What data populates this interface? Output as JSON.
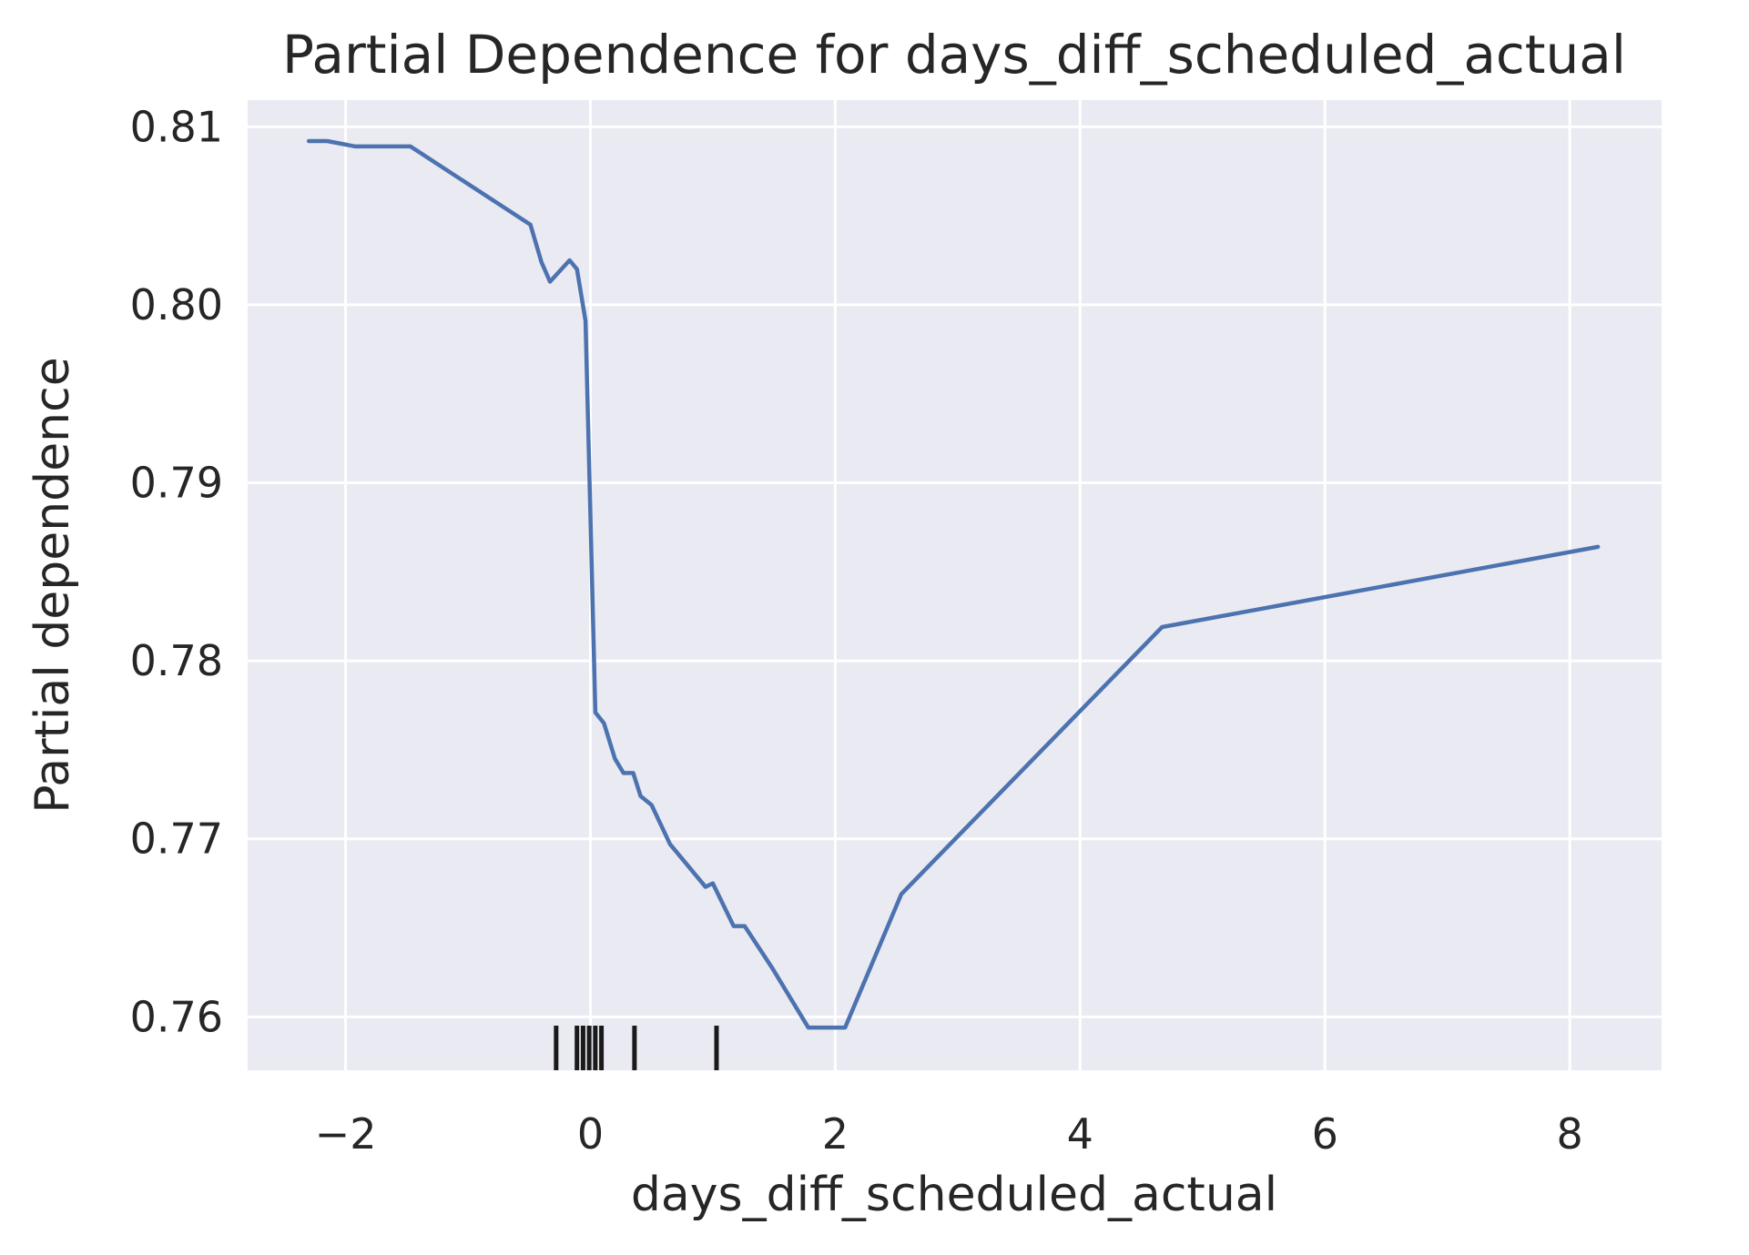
{
  "chart_data": {
    "type": "line",
    "title": "Partial Dependence for days_diff_scheduled_actual",
    "xlabel": "days_diff_scheduled_actual",
    "ylabel": "Partial dependence",
    "xlim": [
      -2.8,
      8.75
    ],
    "ylim": [
      0.757,
      0.8115
    ],
    "x_ticks": [
      -2,
      0,
      2,
      4,
      6,
      8
    ],
    "x_tick_labels": [
      "−2",
      "0",
      "2",
      "4",
      "6",
      "8"
    ],
    "y_ticks": [
      0.76,
      0.77,
      0.78,
      0.79,
      0.8,
      0.81
    ],
    "y_tick_labels": [
      "0.76",
      "0.77",
      "0.78",
      "0.79",
      "0.80",
      "0.81"
    ],
    "grid": true,
    "background": "#EAEAF2",
    "line_color": "#4C72B0",
    "rug_color": "#1a1a1a",
    "series": [
      {
        "x": [
          -2.3,
          -2.15,
          -1.92,
          -1.47,
          -0.49,
          -0.4,
          -0.33,
          -0.17,
          -0.11,
          -0.04,
          0.04,
          0.11,
          0.2,
          0.27,
          0.35,
          0.41,
          0.5,
          0.65,
          0.94,
          1.0,
          1.17,
          1.26,
          1.48,
          1.78,
          2.08,
          2.54,
          4.67,
          8.23
        ],
        "y": [
          0.8092,
          0.8092,
          0.8089,
          0.8089,
          0.8045,
          0.8024,
          0.8013,
          0.8025,
          0.802,
          0.7991,
          0.7771,
          0.7765,
          0.7745,
          0.7737,
          0.7737,
          0.7724,
          0.7719,
          0.7697,
          0.7673,
          0.7675,
          0.7651,
          0.7651,
          0.7628,
          0.7594,
          0.7594,
          0.7669,
          0.7819,
          0.7864
        ]
      }
    ],
    "rug_x": [
      -0.28,
      -0.11,
      -0.06,
      -0.01,
      0.04,
      0.09,
      0.36,
      1.03
    ]
  }
}
